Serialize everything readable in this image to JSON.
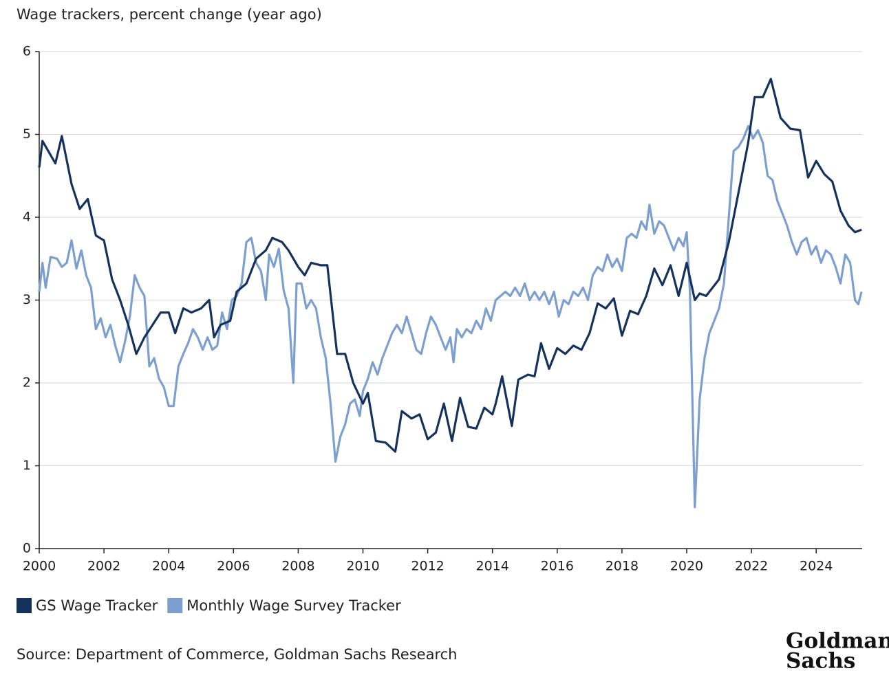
{
  "chart_data": {
    "type": "line",
    "title": "Wage trackers, percent change (year ago)",
    "source": "Source: Department of Commerce, Goldman Sachs Research",
    "logo": [
      "Goldman",
      "Sachs"
    ],
    "xlim": [
      2000,
      2025.42
    ],
    "ylim": [
      0,
      6
    ],
    "xticks": [
      2000,
      2002,
      2004,
      2006,
      2008,
      2010,
      2012,
      2014,
      2016,
      2018,
      2020,
      2022,
      2024
    ],
    "yticks": [
      0,
      1,
      2,
      3,
      4,
      5,
      6
    ],
    "grid": true,
    "legend": "bottom-left",
    "series": [
      {
        "name": "GS Wage Tracker",
        "color": "#14325c",
        "x": [
          2000.0,
          2000.1,
          2000.5,
          2000.7,
          2001.0,
          2001.25,
          2001.5,
          2001.75,
          2002.0,
          2002.25,
          2002.5,
          2002.75,
          2003.0,
          2003.25,
          2003.5,
          2003.75,
          2004.0,
          2004.2,
          2004.45,
          2004.7,
          2005.0,
          2005.25,
          2005.4,
          2005.6,
          2005.9,
          2006.1,
          2006.4,
          2006.7,
          2007.0,
          2007.2,
          2007.5,
          2007.7,
          2008.0,
          2008.2,
          2008.4,
          2008.7,
          2008.9,
          2009.2,
          2009.45,
          2009.7,
          2010.0,
          2010.15,
          2010.4,
          2010.7,
          2011.0,
          2011.2,
          2011.5,
          2011.75,
          2012.0,
          2012.25,
          2012.5,
          2012.75,
          2013.0,
          2013.25,
          2013.5,
          2013.75,
          2014.0,
          2014.1,
          2014.3,
          2014.6,
          2014.8,
          2015.1,
          2015.3,
          2015.5,
          2015.75,
          2016.0,
          2016.25,
          2016.5,
          2016.75,
          2017.0,
          2017.25,
          2017.5,
          2017.75,
          2018.0,
          2018.25,
          2018.5,
          2018.75,
          2019.0,
          2019.25,
          2019.5,
          2019.75,
          2020.0,
          2020.25,
          2020.4,
          2020.6,
          2021.0,
          2021.3,
          2021.6,
          2021.9,
          2022.1,
          2022.35,
          2022.6,
          2022.9,
          2023.2,
          2023.5,
          2023.75,
          2024.0,
          2024.25,
          2024.5,
          2024.75,
          2025.0,
          2025.2,
          2025.4
        ],
        "values": [
          4.6,
          4.92,
          4.65,
          4.98,
          4.4,
          4.1,
          4.22,
          3.78,
          3.72,
          3.25,
          3.0,
          2.7,
          2.35,
          2.55,
          2.7,
          2.85,
          2.85,
          2.6,
          2.9,
          2.85,
          2.9,
          3.0,
          2.55,
          2.7,
          2.75,
          3.1,
          3.2,
          3.5,
          3.6,
          3.75,
          3.7,
          3.6,
          3.4,
          3.3,
          3.45,
          3.42,
          3.42,
          2.35,
          2.35,
          2.0,
          1.75,
          1.88,
          1.3,
          1.28,
          1.17,
          1.66,
          1.57,
          1.62,
          1.32,
          1.4,
          1.75,
          1.3,
          1.82,
          1.47,
          1.45,
          1.7,
          1.62,
          1.75,
          2.08,
          1.48,
          2.04,
          2.1,
          2.08,
          2.48,
          2.17,
          2.42,
          2.35,
          2.45,
          2.4,
          2.6,
          2.96,
          2.9,
          3.02,
          2.57,
          2.87,
          2.83,
          3.05,
          3.38,
          3.18,
          3.42,
          3.05,
          3.45,
          3.0,
          3.08,
          3.05,
          3.25,
          3.7,
          4.3,
          4.9,
          5.45,
          5.45,
          5.67,
          5.2,
          5.07,
          5.05,
          4.48,
          4.68,
          4.52,
          4.43,
          4.08,
          3.9,
          3.82,
          3.85
        ]
      },
      {
        "name": "Monthly Wage Survey Tracker",
        "color": "#7d9fcf",
        "x": [
          2000.0,
          2000.1,
          2000.2,
          2000.35,
          2000.55,
          2000.7,
          2000.85,
          2001.0,
          2001.15,
          2001.3,
          2001.45,
          2001.6,
          2001.75,
          2001.9,
          2002.05,
          2002.2,
          2002.35,
          2002.5,
          2002.65,
          2002.8,
          2002.95,
          2003.1,
          2003.25,
          2003.4,
          2003.55,
          2003.7,
          2003.85,
          2004.0,
          2004.15,
          2004.3,
          2004.45,
          2004.6,
          2004.75,
          2004.9,
          2005.05,
          2005.2,
          2005.35,
          2005.5,
          2005.65,
          2005.8,
          2005.95,
          2006.1,
          2006.25,
          2006.4,
          2006.55,
          2006.7,
          2006.85,
          2007.0,
          2007.1,
          2007.25,
          2007.4,
          2007.55,
          2007.7,
          2007.85,
          2007.95,
          2008.1,
          2008.25,
          2008.4,
          2008.55,
          2008.7,
          2008.85,
          2009.0,
          2009.15,
          2009.3,
          2009.45,
          2009.6,
          2009.75,
          2009.9,
          2010.0,
          2010.15,
          2010.3,
          2010.45,
          2010.6,
          2010.75,
          2010.9,
          2011.05,
          2011.2,
          2011.35,
          2011.5,
          2011.65,
          2011.8,
          2011.95,
          2012.1,
          2012.25,
          2012.4,
          2012.55,
          2012.7,
          2012.8,
          2012.9,
          2013.05,
          2013.2,
          2013.35,
          2013.5,
          2013.65,
          2013.8,
          2013.95,
          2014.1,
          2014.25,
          2014.4,
          2014.55,
          2014.7,
          2014.85,
          2015.0,
          2015.15,
          2015.3,
          2015.45,
          2015.6,
          2015.75,
          2015.9,
          2016.05,
          2016.2,
          2016.35,
          2016.5,
          2016.65,
          2016.8,
          2016.95,
          2017.1,
          2017.25,
          2017.4,
          2017.55,
          2017.7,
          2017.85,
          2018.0,
          2018.15,
          2018.3,
          2018.45,
          2018.6,
          2018.75,
          2018.85,
          2019.0,
          2019.15,
          2019.3,
          2019.45,
          2019.6,
          2019.75,
          2019.9,
          2020.0,
          2020.1,
          2020.25,
          2020.4,
          2020.55,
          2020.7,
          2020.85,
          2021.0,
          2021.15,
          2021.3,
          2021.45,
          2021.6,
          2021.75,
          2021.9,
          2022.05,
          2022.2,
          2022.35,
          2022.5,
          2022.65,
          2022.8,
          2022.95,
          2023.1,
          2023.25,
          2023.4,
          2023.55,
          2023.7,
          2023.85,
          2024.0,
          2024.15,
          2024.3,
          2024.45,
          2024.6,
          2024.75,
          2024.9,
          2025.05,
          2025.2,
          2025.3,
          2025.4
        ],
        "values": [
          3.1,
          3.45,
          3.15,
          3.52,
          3.5,
          3.4,
          3.45,
          3.72,
          3.38,
          3.6,
          3.3,
          3.15,
          2.65,
          2.78,
          2.55,
          2.7,
          2.45,
          2.25,
          2.5,
          2.8,
          3.3,
          3.15,
          3.05,
          2.2,
          2.3,
          2.05,
          1.95,
          1.72,
          1.72,
          2.2,
          2.35,
          2.48,
          2.65,
          2.55,
          2.4,
          2.55,
          2.4,
          2.45,
          2.85,
          2.65,
          3.0,
          3.05,
          3.2,
          3.7,
          3.75,
          3.45,
          3.35,
          3.0,
          3.55,
          3.4,
          3.62,
          3.12,
          2.9,
          2.0,
          3.2,
          3.2,
          2.9,
          3.0,
          2.9,
          2.55,
          2.3,
          1.75,
          1.05,
          1.35,
          1.5,
          1.75,
          1.8,
          1.6,
          1.9,
          2.05,
          2.25,
          2.1,
          2.3,
          2.45,
          2.6,
          2.7,
          2.6,
          2.8,
          2.6,
          2.4,
          2.35,
          2.6,
          2.8,
          2.7,
          2.55,
          2.4,
          2.55,
          2.25,
          2.65,
          2.55,
          2.65,
          2.6,
          2.75,
          2.65,
          2.9,
          2.75,
          3.0,
          3.05,
          3.1,
          3.05,
          3.15,
          3.05,
          3.2,
          3.0,
          3.1,
          3.0,
          3.1,
          2.95,
          3.1,
          2.8,
          3.0,
          2.95,
          3.1,
          3.05,
          3.15,
          3.0,
          3.3,
          3.4,
          3.35,
          3.55,
          3.4,
          3.5,
          3.35,
          3.75,
          3.8,
          3.75,
          3.95,
          3.85,
          4.15,
          3.8,
          3.95,
          3.9,
          3.75,
          3.6,
          3.75,
          3.65,
          3.82,
          3.1,
          0.5,
          1.8,
          2.3,
          2.6,
          2.75,
          2.9,
          3.2,
          4.0,
          4.8,
          4.85,
          4.95,
          5.1,
          4.95,
          5.05,
          4.9,
          4.5,
          4.45,
          4.2,
          4.05,
          3.9,
          3.7,
          3.55,
          3.7,
          3.75,
          3.55,
          3.65,
          3.45,
          3.6,
          3.55,
          3.4,
          3.2,
          3.55,
          3.45,
          3.0,
          2.95,
          3.1
        ]
      }
    ]
  }
}
